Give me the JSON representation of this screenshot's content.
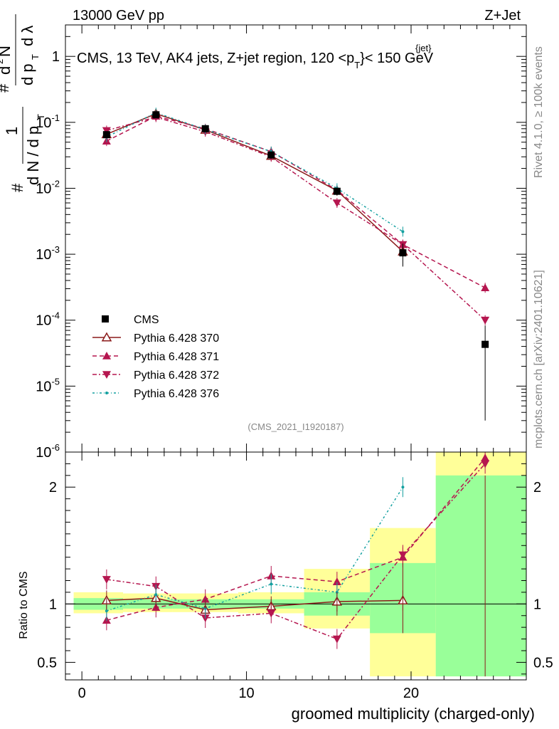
{
  "header": {
    "left": "13000 GeV pp",
    "right": "Z+Jet",
    "plot_title_main": "CMS, 13 TeV, AK4 jets, Z+jet region, 120 <p",
    "plot_title_sup": "{jet}",
    "plot_title_sub": "T",
    "plot_title_end": "}< 150 GeV",
    "analysis_id": "(CMS_2021_I1920187)",
    "side_label_top": "Rivet 4.1.0, ≥ 100k events",
    "side_label_bottom": "mcplots.cern.ch [arXiv:2401.10621]"
  },
  "chart_data": {
    "type": "line",
    "xlabel": "groomed multiplicity (charged-only)",
    "ylabel_main": "1/(dN/dpT) d²N/(dpT dλ)",
    "ylabel_ratio": "Ratio to CMS",
    "xlim": [
      -1,
      27
    ],
    "ylim_main": [
      1e-06,
      3
    ],
    "ylim_ratio": [
      0.35,
      2.3
    ],
    "x_ticks": [
      0,
      10,
      20
    ],
    "y_ticks_main": [
      {
        "v": 1e-06,
        "base": "10",
        "exp": "-6"
      },
      {
        "v": 1e-05,
        "base": "10",
        "exp": "-5"
      },
      {
        "v": 0.0001,
        "base": "10",
        "exp": "-4"
      },
      {
        "v": 0.001,
        "base": "10",
        "exp": "-3"
      },
      {
        "v": 0.01,
        "base": "10",
        "exp": "-2"
      },
      {
        "v": 0.1,
        "base": "10",
        "exp": "-1"
      },
      {
        "v": 1,
        "base": "1",
        "exp": ""
      }
    ],
    "y_ticks_ratio": [
      {
        "v": 0.5,
        "label": "0.5"
      },
      {
        "v": 1,
        "label": "1"
      },
      {
        "v": 2,
        "label": "2"
      }
    ],
    "bin_edges": [
      -0.5,
      2.5,
      5.5,
      9.5,
      13.5,
      17.5,
      21.5,
      27.5
    ],
    "x": [
      1.5,
      4.5,
      7.5,
      11.5,
      15.5,
      19.5,
      24.5
    ],
    "data": {
      "name": "CMS",
      "values": [
        0.065,
        0.13,
        0.08,
        0.032,
        0.009,
        0.00105,
        4.3e-05
      ],
      "errors": [
        0.006,
        0.01,
        0.006,
        0.003,
        0.0012,
        0.0004,
        4e-05
      ]
    },
    "ratio_bands": {
      "green": [
        [
          0.95,
          1.05
        ],
        [
          0.96,
          1.04
        ],
        [
          0.96,
          1.04
        ],
        [
          0.96,
          1.04
        ],
        [
          0.9,
          1.1
        ],
        [
          0.75,
          1.35
        ],
        [
          0.38,
          2.1
        ]
      ],
      "yellow": [
        [
          0.92,
          1.1
        ],
        [
          0.93,
          1.09
        ],
        [
          0.93,
          1.09
        ],
        [
          0.92,
          1.1
        ],
        [
          0.79,
          1.3
        ],
        [
          0.38,
          1.65
        ],
        [
          0.38,
          2.3
        ]
      ]
    },
    "series": [
      {
        "name": "Pythia 6.428 370",
        "color": "#8b1a1a",
        "dash": "",
        "marker": "triangle-open",
        "values": [
          0.066,
          0.135,
          0.077,
          0.031,
          0.0092,
          0.0011,
          null
        ],
        "ratio": [
          1.03,
          1.05,
          0.95,
          0.98,
          1.02,
          1.03,
          null
        ]
      },
      {
        "name": "Pythia 6.428 371",
        "color": "#b5164f",
        "dash": "6,4",
        "marker": "triangle-up",
        "values": [
          0.052,
          0.124,
          0.08,
          0.036,
          0.0094,
          0.0014,
          0.00031
        ],
        "ratio": [
          0.86,
          0.97,
          1.04,
          1.24,
          1.19,
          1.4,
          2.25
        ]
      },
      {
        "name": "Pythia 6.428 372",
        "color": "#b5164f",
        "dash": "6,3,2,3",
        "marker": "triangle-down",
        "values": [
          0.075,
          0.12,
          0.072,
          0.03,
          0.006,
          0.0014,
          0.0001
        ],
        "ratio": [
          1.21,
          1.15,
          0.88,
          0.92,
          0.7,
          1.42,
          2.2
        ]
      },
      {
        "name": "Pythia 6.428 376",
        "color": "#13a0a0",
        "dash": "3,3,1,3",
        "marker": "dot",
        "values": [
          0.06,
          0.14,
          0.078,
          0.036,
          0.01,
          0.0022,
          null
        ],
        "ratio": [
          0.94,
          1.08,
          0.96,
          1.17,
          1.1,
          2.0,
          null
        ]
      }
    ]
  }
}
